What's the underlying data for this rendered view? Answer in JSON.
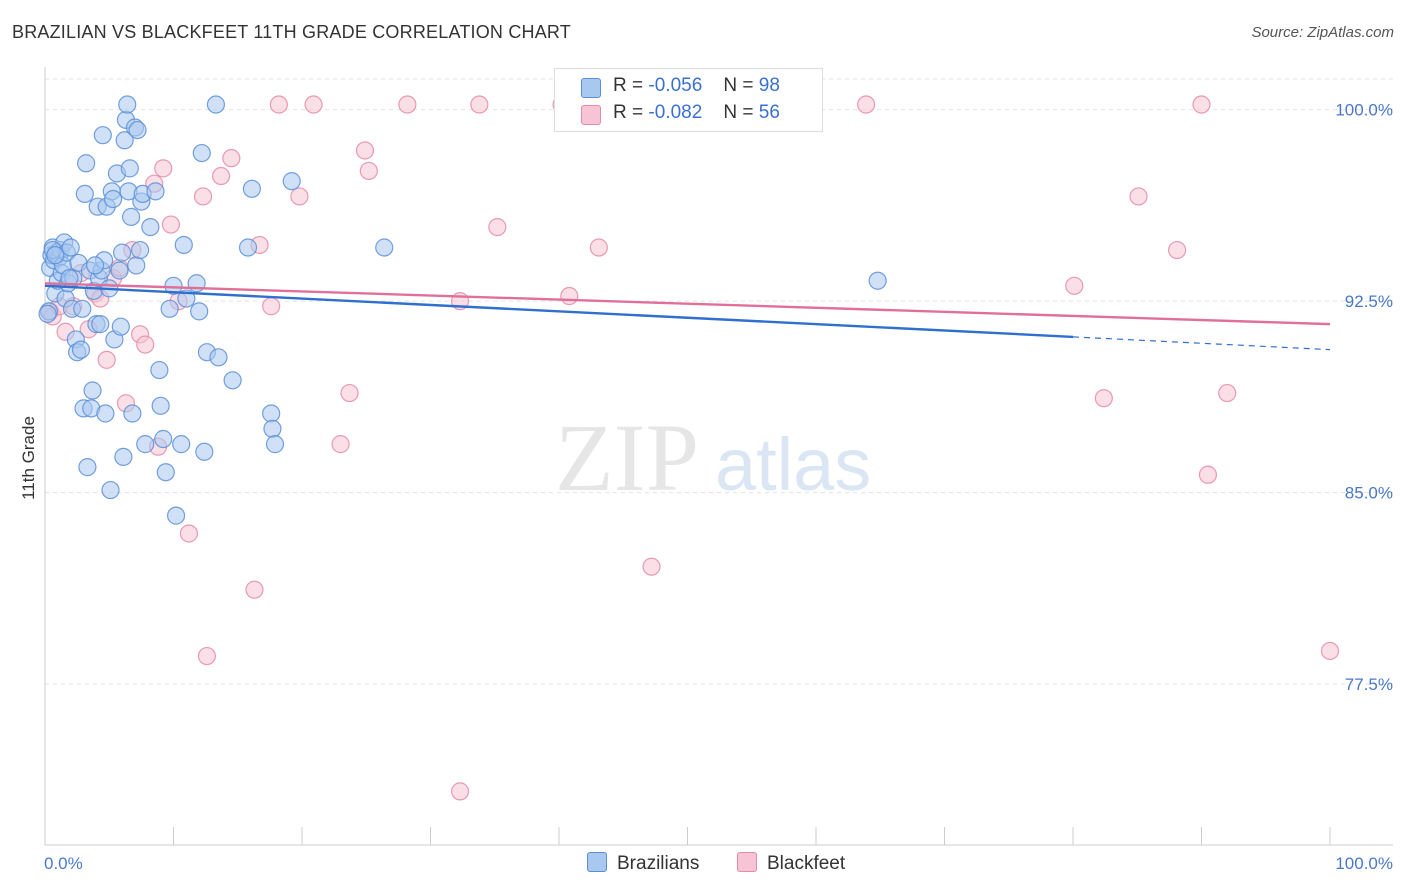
{
  "title": "BRAZILIAN VS BLACKFEET 11TH GRADE CORRELATION CHART",
  "source": "Source: ZipAtlas.com",
  "watermark": {
    "zip": "ZIP",
    "atlas": "atlas"
  },
  "legend": {
    "rows": [
      {
        "r_label": "R =",
        "r_value": "-0.056",
        "n_label": "N =",
        "n_value": "98",
        "color": "#a9c8f0",
        "border": "#5a8fd8"
      },
      {
        "r_label": "R =",
        "r_value": "-0.082",
        "n_label": "N =",
        "n_value": "56",
        "color": "#f6c4d4",
        "border": "#e58aa8"
      }
    ]
  },
  "bottom_legend": [
    {
      "label": "Brazilians",
      "color": "#a9c8f0",
      "border": "#5a8fd8"
    },
    {
      "label": "Blackfeet",
      "color": "#f6c4d4",
      "border": "#e58aa8"
    }
  ],
  "chart_data": {
    "type": "scatter",
    "title": "BRAZILIAN VS BLACKFEET 11TH GRADE CORRELATION CHART",
    "xlabel": "",
    "ylabel": "11th Grade",
    "xlim": [
      0,
      100
    ],
    "ylim": [
      71.2,
      101.2
    ],
    "x_tick_labels": {
      "left": "0.0%",
      "right": "100.0%"
    },
    "y_ticks": [
      {
        "value": 100.0,
        "label": "100.0%"
      },
      {
        "value": 92.5,
        "label": "92.5%"
      },
      {
        "value": 85.0,
        "label": "85.0%"
      },
      {
        "value": 77.5,
        "label": "77.5%"
      }
    ],
    "series": [
      {
        "name": "Brazilians",
        "color": "#5a8fd8",
        "fill": "#a9c8f0",
        "trend": {
          "x": [
            0,
            80
          ],
          "y": [
            93.1,
            91.1
          ],
          "dashed_to": [
            100,
            90.6
          ],
          "color": "#2f6fce"
        },
        "points": [
          [
            0.3,
            92.1
          ],
          [
            0.4,
            93.8
          ],
          [
            0.5,
            94.3
          ],
          [
            0.6,
            94.6
          ],
          [
            0.7,
            94.1
          ],
          [
            0.8,
            92.8
          ],
          [
            0.9,
            94.4
          ],
          [
            1.0,
            93.3
          ],
          [
            1.1,
            94.2
          ],
          [
            1.2,
            94.5
          ],
          [
            1.3,
            93.6
          ],
          [
            1.4,
            93.9
          ],
          [
            1.5,
            94.8
          ],
          [
            1.6,
            92.6
          ],
          [
            1.7,
            94.4
          ],
          [
            1.8,
            93.2
          ],
          [
            2.0,
            94.6
          ],
          [
            2.1,
            92.2
          ],
          [
            2.2,
            93.4
          ],
          [
            2.4,
            91.0
          ],
          [
            2.5,
            90.5
          ],
          [
            2.6,
            94.0
          ],
          [
            2.8,
            90.6
          ],
          [
            2.9,
            92.2
          ],
          [
            3.0,
            88.3
          ],
          [
            3.1,
            96.7
          ],
          [
            3.2,
            97.9
          ],
          [
            3.3,
            86.0
          ],
          [
            3.5,
            93.7
          ],
          [
            3.6,
            88.3
          ],
          [
            3.7,
            89.0
          ],
          [
            3.8,
            92.9
          ],
          [
            4.0,
            91.6
          ],
          [
            4.1,
            96.2
          ],
          [
            4.2,
            93.4
          ],
          [
            4.3,
            91.6
          ],
          [
            4.4,
            93.7
          ],
          [
            4.5,
            99.0
          ],
          [
            4.6,
            94.1
          ],
          [
            4.7,
            88.1
          ],
          [
            4.8,
            96.2
          ],
          [
            5.0,
            93.0
          ],
          [
            5.1,
            85.1
          ],
          [
            5.2,
            96.8
          ],
          [
            5.3,
            96.5
          ],
          [
            5.4,
            91.0
          ],
          [
            5.6,
            97.5
          ],
          [
            5.8,
            93.7
          ],
          [
            5.9,
            91.5
          ],
          [
            6.0,
            94.4
          ],
          [
            6.1,
            86.4
          ],
          [
            6.2,
            98.8
          ],
          [
            6.3,
            99.6
          ],
          [
            6.4,
            100.2
          ],
          [
            6.5,
            96.8
          ],
          [
            6.6,
            97.7
          ],
          [
            6.7,
            95.8
          ],
          [
            6.8,
            88.1
          ],
          [
            7.0,
            99.3
          ],
          [
            7.1,
            93.9
          ],
          [
            7.2,
            99.2
          ],
          [
            7.4,
            94.5
          ],
          [
            7.5,
            96.4
          ],
          [
            7.6,
            96.7
          ],
          [
            7.8,
            86.9
          ],
          [
            8.2,
            95.4
          ],
          [
            8.6,
            96.8
          ],
          [
            8.9,
            89.8
          ],
          [
            9.0,
            88.4
          ],
          [
            9.2,
            87.1
          ],
          [
            9.4,
            85.8
          ],
          [
            9.7,
            92.2
          ],
          [
            10.0,
            93.1
          ],
          [
            10.2,
            84.1
          ],
          [
            10.6,
            86.9
          ],
          [
            10.8,
            94.7
          ],
          [
            11.0,
            92.6
          ],
          [
            11.8,
            93.2
          ],
          [
            12.0,
            92.1
          ],
          [
            12.2,
            98.3
          ],
          [
            12.4,
            86.6
          ],
          [
            12.6,
            90.5
          ],
          [
            13.5,
            90.3
          ],
          [
            13.3,
            100.2
          ],
          [
            14.6,
            89.4
          ],
          [
            15.8,
            94.6
          ],
          [
            16.1,
            96.9
          ],
          [
            17.6,
            88.1
          ],
          [
            17.7,
            87.5
          ],
          [
            17.9,
            86.9
          ],
          [
            19.2,
            97.2
          ],
          [
            26.4,
            94.6
          ],
          [
            64.8,
            93.3
          ],
          [
            0.2,
            92.0
          ],
          [
            0.6,
            94.5
          ],
          [
            1.9,
            93.4
          ],
          [
            3.9,
            93.9
          ],
          [
            0.8,
            94.3
          ]
        ]
      },
      {
        "name": "Blackfeet",
        "color": "#e58aa8",
        "fill": "#f6c4d4",
        "trend": {
          "x": [
            0,
            100
          ],
          "y": [
            93.2,
            91.6
          ],
          "color": "#e0709a"
        },
        "points": [
          [
            0.4,
            92.1
          ],
          [
            0.6,
            91.9
          ],
          [
            1.1,
            92.3
          ],
          [
            1.6,
            91.3
          ],
          [
            2.2,
            92.3
          ],
          [
            2.8,
            93.6
          ],
          [
            3.4,
            91.4
          ],
          [
            3.9,
            92.8
          ],
          [
            4.3,
            92.6
          ],
          [
            4.8,
            90.2
          ],
          [
            5.3,
            93.4
          ],
          [
            5.8,
            93.8
          ],
          [
            6.3,
            88.5
          ],
          [
            6.8,
            94.5
          ],
          [
            7.4,
            91.2
          ],
          [
            7.8,
            90.8
          ],
          [
            8.5,
            97.1
          ],
          [
            8.8,
            86.8
          ],
          [
            9.2,
            97.7
          ],
          [
            9.8,
            95.5
          ],
          [
            10.4,
            92.5
          ],
          [
            11.2,
            83.4
          ],
          [
            12.3,
            96.6
          ],
          [
            12.6,
            78.6
          ],
          [
            13.7,
            97.4
          ],
          [
            14.5,
            98.1
          ],
          [
            16.3,
            81.2
          ],
          [
            16.7,
            94.7
          ],
          [
            17.6,
            92.3
          ],
          [
            18.2,
            100.2
          ],
          [
            19.8,
            96.6
          ],
          [
            20.9,
            100.2
          ],
          [
            23.0,
            86.9
          ],
          [
            23.7,
            88.9
          ],
          [
            24.9,
            98.4
          ],
          [
            25.2,
            97.6
          ],
          [
            28.2,
            100.2
          ],
          [
            32.3,
            92.5
          ],
          [
            32.3,
            73.3
          ],
          [
            33.8,
            100.2
          ],
          [
            35.2,
            95.4
          ],
          [
            40.2,
            100.2
          ],
          [
            40.8,
            92.7
          ],
          [
            43.1,
            94.6
          ],
          [
            47.2,
            82.1
          ],
          [
            47.9,
            100.2
          ],
          [
            51.1,
            100.2
          ],
          [
            63.9,
            100.2
          ],
          [
            80.1,
            93.1
          ],
          [
            82.4,
            88.7
          ],
          [
            85.1,
            96.6
          ],
          [
            88.1,
            94.5
          ],
          [
            90.0,
            100.2
          ],
          [
            90.5,
            85.7
          ],
          [
            92.0,
            88.9
          ],
          [
            100.0,
            78.8
          ]
        ]
      }
    ]
  }
}
